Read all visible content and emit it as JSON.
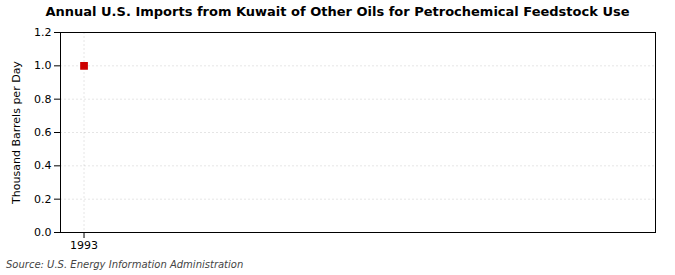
{
  "chart_data": {
    "type": "scatter",
    "title": "Annual U.S. Imports from Kuwait of Other Oils for Petrochemical Feedstock Use",
    "ylabel": "Thousand Barrels per Day",
    "source": "Source: U.S. Energy Information Administration",
    "x": [
      1993
    ],
    "values": [
      1.0
    ],
    "color": "#cc0000",
    "marker": "square",
    "xlim": [
      1992.3,
      2010
    ],
    "xticks": [
      1993
    ],
    "ylim": [
      0.0,
      1.2
    ],
    "yticks": [
      {
        "value": 0.0,
        "label": "0.0"
      },
      0.2,
      0.4,
      0.6,
      0.8,
      {
        "value": 1.0,
        "label": "1.0"
      },
      1.2
    ],
    "grid": true
  }
}
